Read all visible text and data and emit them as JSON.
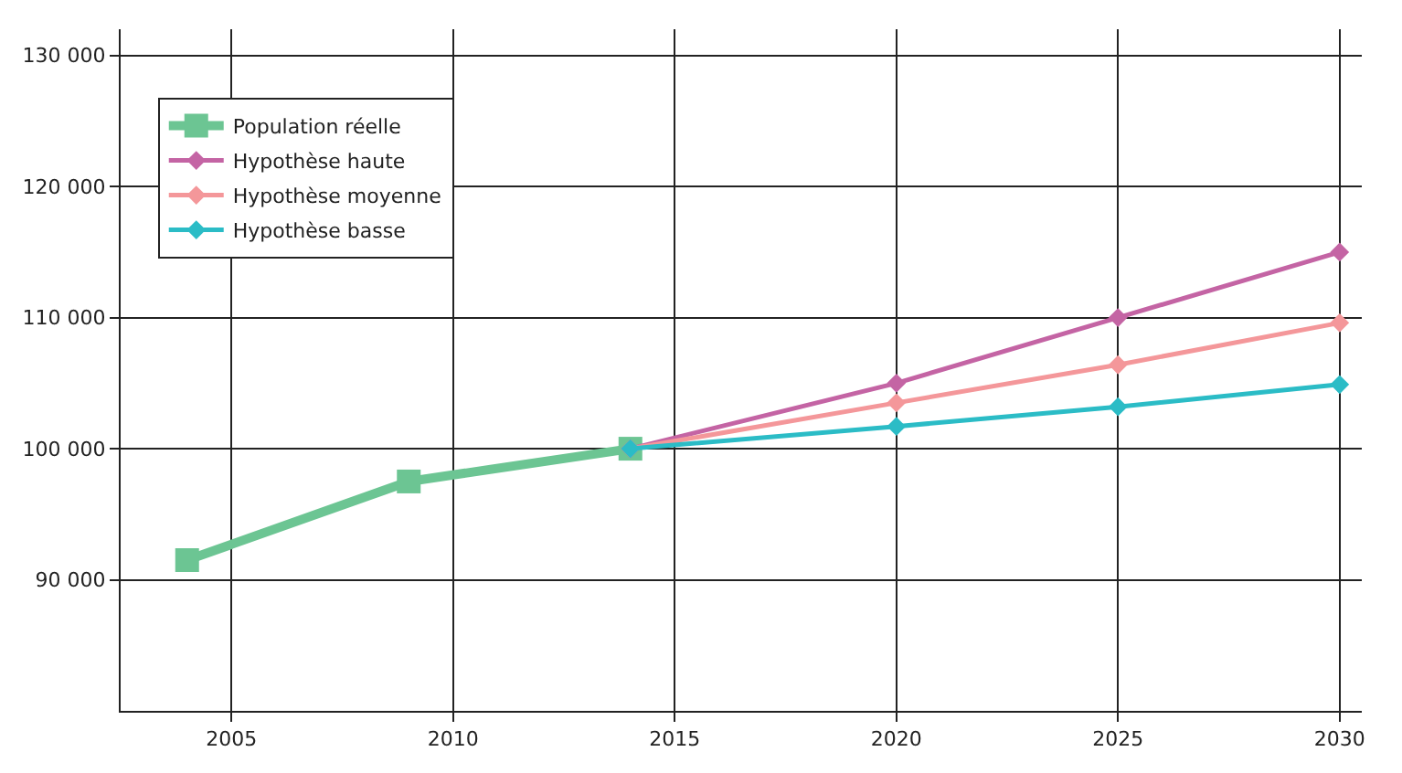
{
  "chart_data": {
    "type": "line",
    "x": [
      2004,
      2009,
      2014,
      2020,
      2025,
      2030
    ],
    "series": [
      {
        "name": "Population réelle",
        "color": "#6cc593",
        "values": [
          91500,
          97500,
          100000,
          null,
          null,
          null
        ],
        "marker": "square"
      },
      {
        "name": "Hypothèse haute",
        "color": "#c464a4",
        "values": [
          null,
          null,
          100000,
          105000,
          110000,
          115000
        ],
        "marker": "diamond"
      },
      {
        "name": "Hypothèse moyenne",
        "color": "#f4979a",
        "values": [
          null,
          null,
          100000,
          103500,
          106400,
          109600
        ],
        "marker": "diamond"
      },
      {
        "name": "Hypothèse basse",
        "color": "#2bbcc6",
        "values": [
          null,
          null,
          100000,
          101700,
          103200,
          104900
        ],
        "marker": "diamond"
      }
    ],
    "xlim": [
      2002.5,
      2030.5
    ],
    "xticks": [
      2005,
      2010,
      2015,
      2020,
      2025,
      2030
    ],
    "ylim": [
      80000,
      132000
    ],
    "yticks": [
      {
        "value": 90000,
        "label": "90 000"
      },
      {
        "value": 100000,
        "label": "100 000"
      },
      {
        "value": 110000,
        "label": "110 000"
      },
      {
        "value": 120000,
        "label": "120 000"
      },
      {
        "value": 130000,
        "label": "130 000"
      }
    ],
    "grid": true,
    "legend": "top left",
    "line_style": "solid"
  }
}
